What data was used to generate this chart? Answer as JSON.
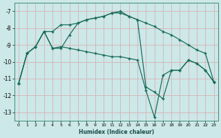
{
  "xlabel": "Humidex (Indice chaleur)",
  "bg_color": "#cce8e8",
  "plot_bg_color": "#cce8e8",
  "grid_color": "#d8b0b0",
  "line_color": "#1a6b5a",
  "xlim": [
    -0.5,
    23.5
  ],
  "ylim": [
    -13.5,
    -6.5
  ],
  "yticks": [
    -13,
    -12,
    -11,
    -10,
    -9,
    -8,
    -7
  ],
  "xticks": [
    0,
    1,
    2,
    3,
    4,
    5,
    6,
    7,
    8,
    9,
    10,
    11,
    12,
    13,
    14,
    15,
    16,
    17,
    18,
    19,
    20,
    21,
    22,
    23
  ],
  "line1_x": [
    0,
    1,
    2,
    3,
    4,
    5,
    6,
    7,
    8,
    9,
    10,
    11,
    12,
    13,
    14,
    15,
    16,
    17,
    18,
    19,
    20,
    21,
    22,
    23
  ],
  "line1_y": [
    -11.3,
    -9.5,
    -9.1,
    -8.2,
    -8.2,
    -7.8,
    -7.8,
    -7.7,
    -7.5,
    -7.4,
    -7.3,
    -7.1,
    -7.1,
    -7.3,
    -7.5,
    -7.7,
    -7.9,
    -8.2,
    -8.4,
    -8.7,
    -9.0,
    -9.3,
    -9.5,
    -11.2
  ],
  "line2_x": [
    0,
    1,
    2,
    3,
    4,
    5,
    6,
    7,
    8,
    9,
    10,
    11,
    12,
    13,
    14,
    15,
    16,
    17,
    18,
    19,
    20,
    21,
    22,
    23
  ],
  "line2_y": [
    -11.3,
    -9.5,
    -9.1,
    -8.2,
    -9.2,
    -9.1,
    -9.2,
    -9.3,
    -9.4,
    -9.5,
    -9.6,
    -9.7,
    -9.7,
    -9.8,
    -9.9,
    -11.7,
    -13.3,
    -10.8,
    -10.5,
    -10.5,
    -9.9,
    -10.1,
    -10.5,
    -11.2
  ],
  "line3_x": [
    0,
    1,
    2,
    3,
    4,
    5,
    6,
    7,
    8,
    9,
    10,
    11,
    12,
    13,
    14,
    15,
    16,
    17,
    18,
    19,
    20,
    21,
    22,
    23
  ],
  "line3_y": [
    -11.3,
    -9.5,
    -9.1,
    -8.2,
    -9.2,
    -9.2,
    -8.4,
    -7.7,
    -7.5,
    -7.4,
    -7.3,
    -7.1,
    -7.0,
    -7.3,
    -7.5,
    -11.5,
    -11.8,
    -12.2,
    -10.5,
    -10.5,
    -9.9,
    -10.1,
    -10.5,
    -11.2
  ]
}
